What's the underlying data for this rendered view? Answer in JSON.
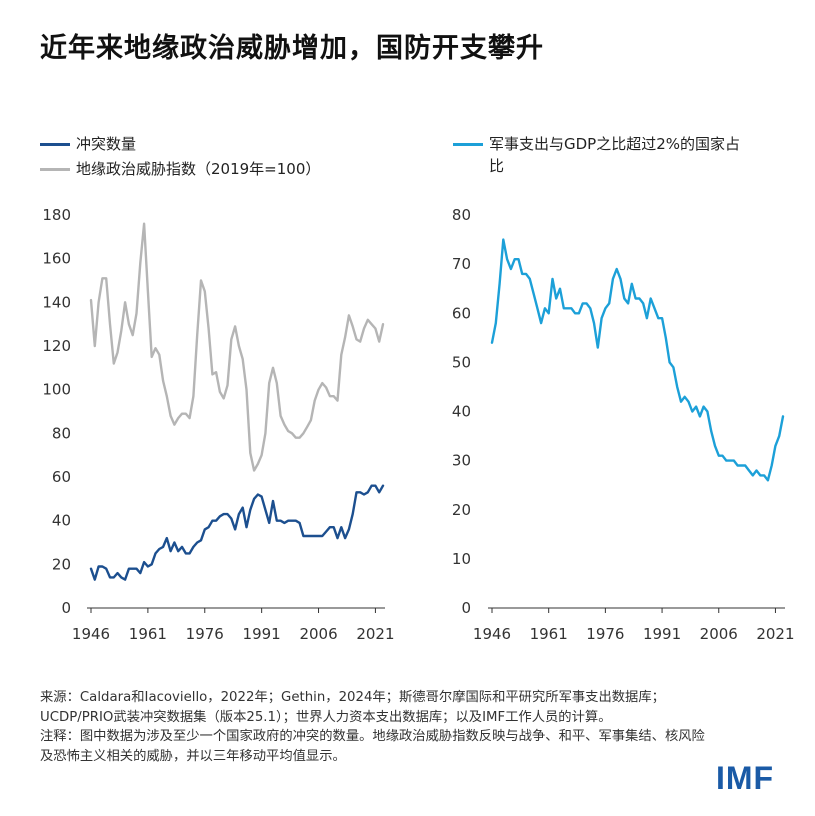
{
  "title": "近年来地缘政治威胁增加，国防开支攀升",
  "colors": {
    "conflicts": "#1c4f8f",
    "threat": "#b5b5b5",
    "military": "#1ca0d8",
    "axis": "#333333",
    "logo": "#1a5aa6"
  },
  "legend_left": [
    {
      "label": "冲突数量",
      "color": "#1c4f8f"
    },
    {
      "label": "地缘政治威胁指数（2019年=100）",
      "color": "#b5b5b5"
    }
  ],
  "legend_right": [
    {
      "label": "军事支出与GDP之比超过2%的国家占比",
      "color": "#1ca0d8"
    }
  ],
  "notes": {
    "source": "来源：Caldara和Iacoviello，2022年；Gethin，2024年；斯德哥尔摩国际和平研究所军事支出数据库；UCDP/PRIO武装冲突数据集（版本25.1）；世界人力资本支出数据库；以及IMF工作人员的计算。",
    "note": "注释：图中数据为涉及至少一个国家政府的冲突的数量。地缘政治威胁指数反映与战争、和平、军事集结、核风险及恐怖主义相关的威胁，并以三年移动平均值显示。"
  },
  "logo": "IMF",
  "chart_data": [
    {
      "type": "line",
      "xlim": [
        1946,
        2023
      ],
      "ylim": [
        0,
        180
      ],
      "xticks": [
        1946,
        1961,
        1976,
        1991,
        2006,
        2021
      ],
      "yticks": [
        0,
        20,
        40,
        60,
        80,
        100,
        120,
        140,
        160,
        180
      ],
      "series": [
        {
          "name": "冲突数量",
          "x": [
            1946,
            1947,
            1948,
            1949,
            1950,
            1951,
            1952,
            1953,
            1954,
            1955,
            1956,
            1957,
            1958,
            1959,
            1960,
            1961,
            1962,
            1963,
            1964,
            1965,
            1966,
            1967,
            1968,
            1969,
            1970,
            1971,
            1972,
            1973,
            1974,
            1975,
            1976,
            1977,
            1978,
            1979,
            1980,
            1981,
            1982,
            1983,
            1984,
            1985,
            1986,
            1987,
            1988,
            1989,
            1990,
            1991,
            1992,
            1993,
            1994,
            1995,
            1996,
            1997,
            1998,
            1999,
            2000,
            2001,
            2002,
            2003,
            2004,
            2005,
            2006,
            2007,
            2008,
            2009,
            2010,
            2011,
            2012,
            2013,
            2014,
            2015,
            2016,
            2017,
            2018,
            2019,
            2020,
            2021,
            2022,
            2023
          ],
          "values": [
            18,
            13,
            19,
            19,
            18,
            14,
            14,
            16,
            14,
            13,
            18,
            18,
            18,
            16,
            21,
            19,
            20,
            25,
            27,
            28,
            32,
            26,
            30,
            26,
            28,
            25,
            25,
            28,
            30,
            31,
            36,
            37,
            40,
            40,
            42,
            43,
            43,
            41,
            36,
            43,
            46,
            37,
            45,
            50,
            52,
            51,
            45,
            39,
            49,
            40,
            40,
            39,
            40,
            40,
            40,
            39,
            33,
            33,
            33,
            33,
            33,
            33,
            35,
            37,
            37,
            32,
            37,
            32,
            36,
            43,
            53,
            53,
            52,
            53,
            56,
            56,
            53,
            56
          ]
        },
        {
          "name": "地缘政治威胁指数（2019年=100）",
          "x": [
            1946,
            1947,
            1948,
            1949,
            1950,
            1951,
            1952,
            1953,
            1954,
            1955,
            1956,
            1957,
            1958,
            1959,
            1960,
            1961,
            1962,
            1963,
            1964,
            1965,
            1966,
            1967,
            1968,
            1969,
            1970,
            1971,
            1972,
            1973,
            1974,
            1975,
            1976,
            1977,
            1978,
            1979,
            1980,
            1981,
            1982,
            1983,
            1984,
            1985,
            1986,
            1987,
            1988,
            1989,
            1990,
            1991,
            1992,
            1993,
            1994,
            1995,
            1996,
            1997,
            1998,
            1999,
            2000,
            2001,
            2002,
            2003,
            2004,
            2005,
            2006,
            2007,
            2008,
            2009,
            2010,
            2011,
            2012,
            2013,
            2014,
            2015,
            2016,
            2017,
            2018,
            2019,
            2020,
            2021,
            2022,
            2023
          ],
          "values": [
            141,
            120,
            140,
            151,
            151,
            130,
            112,
            117,
            127,
            140,
            130,
            125,
            135,
            158,
            176,
            145,
            115,
            119,
            116,
            104,
            97,
            88,
            84,
            87,
            89,
            89,
            87,
            97,
            125,
            150,
            145,
            128,
            107,
            108,
            99,
            96,
            102,
            123,
            129,
            120,
            114,
            100,
            71,
            63,
            66,
            70,
            80,
            103,
            110,
            103,
            88,
            84,
            81,
            80,
            78,
            78,
            80,
            83,
            86,
            95,
            100,
            103,
            101,
            97,
            97,
            95,
            116,
            124,
            134,
            129,
            123,
            122,
            128,
            132,
            130,
            128,
            122,
            130
          ]
        }
      ]
    },
    {
      "type": "line",
      "xlim": [
        1946,
        2023
      ],
      "ylim": [
        0,
        80
      ],
      "xticks": [
        1946,
        1961,
        1976,
        1991,
        2006,
        2021
      ],
      "yticks": [
        0,
        10,
        20,
        30,
        40,
        50,
        60,
        70,
        80
      ],
      "series": [
        {
          "name": "军事支出与GDP之比超过2%的国家占比",
          "x": [
            1946,
            1947,
            1948,
            1949,
            1950,
            1951,
            1952,
            1953,
            1954,
            1955,
            1956,
            1957,
            1958,
            1959,
            1960,
            1961,
            1962,
            1963,
            1964,
            1965,
            1966,
            1967,
            1968,
            1969,
            1970,
            1971,
            1972,
            1973,
            1974,
            1975,
            1976,
            1977,
            1978,
            1979,
            1980,
            1981,
            1982,
            1983,
            1984,
            1985,
            1986,
            1987,
            1988,
            1989,
            1990,
            1991,
            1992,
            1993,
            1994,
            1995,
            1996,
            1997,
            1998,
            1999,
            2000,
            2001,
            2002,
            2003,
            2004,
            2005,
            2006,
            2007,
            2008,
            2009,
            2010,
            2011,
            2012,
            2013,
            2014,
            2015,
            2016,
            2017,
            2018,
            2019,
            2020,
            2021,
            2022,
            2023
          ],
          "values": [
            54,
            58,
            66,
            75,
            71,
            69,
            71,
            71,
            68,
            68,
            67,
            64,
            61,
            58,
            61,
            60,
            67,
            63,
            65,
            61,
            61,
            61,
            60,
            60,
            62,
            62,
            61,
            58,
            53,
            59,
            61,
            62,
            67,
            69,
            67,
            63,
            62,
            66,
            63,
            63,
            62,
            59,
            63,
            61,
            59,
            59,
            55,
            50,
            49,
            45,
            42,
            43,
            42,
            40,
            41,
            39,
            41,
            40,
            36,
            33,
            31,
            31,
            30,
            30,
            30,
            29,
            29,
            29,
            28,
            27,
            28,
            27,
            27,
            26,
            29,
            33,
            35,
            39
          ]
        }
      ]
    }
  ]
}
